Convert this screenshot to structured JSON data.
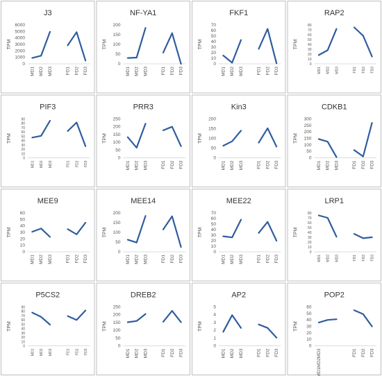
{
  "chart_data": [
    {
      "type": "line",
      "title": "J3",
      "ylabel": "TPM",
      "ylim": [
        0,
        6000
      ],
      "yticks": [
        0,
        1000,
        2000,
        3000,
        4000,
        5000,
        6000
      ],
      "categories": [
        "MD1",
        "MD2",
        "MD3",
        "",
        "FD1",
        "FD2",
        "FD3"
      ],
      "series": [
        {
          "values": [
            900,
            1250,
            4950,
            null,
            2850,
            4900,
            500
          ]
        }
      ],
      "color": "#2e5c9e"
    },
    {
      "type": "line",
      "title": "NF-YA1",
      "ylabel": "TPM",
      "ylim": [
        0,
        200
      ],
      "yticks": [
        0,
        50,
        100,
        150,
        200
      ],
      "categories": [
        "MD1",
        "MD2",
        "MD3",
        "",
        "FD1",
        "FD2",
        "FD3"
      ],
      "series": [
        {
          "values": [
            30,
            32,
            185,
            null,
            58,
            158,
            0
          ]
        }
      ],
      "color": "#2e5c9e"
    },
    {
      "type": "line",
      "title": "FKF1",
      "ylabel": "TPM",
      "ylim": [
        0,
        70
      ],
      "yticks": [
        0,
        10,
        20,
        30,
        40,
        50,
        60,
        70
      ],
      "categories": [
        "MD1",
        "MD2",
        "MD3",
        "",
        "FD1",
        "FD2",
        "FD3"
      ],
      "series": [
        {
          "values": [
            15,
            2,
            43,
            null,
            27,
            63,
            1
          ]
        }
      ],
      "color": "#2e5c9e"
    },
    {
      "type": "line",
      "title": "RAP2",
      "ylabel": "TPM",
      "ylim": [
        0,
        80
      ],
      "yticks": [
        0,
        10,
        20,
        30,
        40,
        50,
        60,
        70,
        80
      ],
      "categories": [
        "MD1",
        "MD2",
        "MD3",
        "",
        "FD1",
        "FD2",
        "FD3"
      ],
      "series": [
        {
          "values": [
            18,
            28,
            72,
            null,
            75,
            58,
            15
          ]
        }
      ],
      "color": "#2e5c9e"
    },
    {
      "type": "line",
      "title": "PIF3",
      "ylabel": "TPM",
      "ylim": [
        0,
        90
      ],
      "yticks": [
        0,
        10,
        20,
        30,
        40,
        50,
        60,
        70,
        80,
        90
      ],
      "categories": [
        "MD1",
        "MD2",
        "MD3",
        "",
        "FD1",
        "FD2",
        "FD3"
      ],
      "series": [
        {
          "values": [
            47,
            51,
            86,
            null,
            62,
            82,
            27
          ]
        }
      ],
      "color": "#2e5c9e"
    },
    {
      "type": "line",
      "title": "PRR3",
      "ylabel": "TPM",
      "ylim": [
        0,
        250
      ],
      "yticks": [
        0,
        50,
        100,
        150,
        200,
        250
      ],
      "categories": [
        "MD1",
        "MD2",
        "MD3",
        "",
        "FD1",
        "FD2",
        "FD3"
      ],
      "series": [
        {
          "values": [
            133,
            65,
            220,
            null,
            177,
            200,
            75
          ]
        }
      ],
      "color": "#2e5c9e"
    },
    {
      "type": "line",
      "title": "Kin3",
      "ylabel": "TPM",
      "ylim": [
        0,
        200
      ],
      "yticks": [
        0,
        50,
        100,
        150,
        200
      ],
      "categories": [
        "MD1",
        "MD2",
        "MD3",
        "",
        "FD1",
        "FD2",
        "FD3"
      ],
      "series": [
        {
          "values": [
            62,
            85,
            140,
            null,
            78,
            152,
            58
          ]
        }
      ],
      "color": "#2e5c9e"
    },
    {
      "type": "line",
      "title": "CDKB1",
      "ylabel": "TPM",
      "ylim": [
        0,
        300
      ],
      "yticks": [
        0,
        50,
        100,
        150,
        200,
        250,
        300
      ],
      "categories": [
        "MD1",
        "MD2",
        "MD3",
        "",
        "FD1",
        "FD2",
        "FD3"
      ],
      "series": [
        {
          "values": [
            145,
            125,
            5,
            null,
            60,
            10,
            270
          ]
        }
      ],
      "color": "#2e5c9e"
    },
    {
      "type": "line",
      "title": "MEE9",
      "ylabel": "TPM",
      "ylim": [
        0,
        60
      ],
      "yticks": [
        0,
        10,
        20,
        30,
        40,
        50,
        60
      ],
      "categories": [
        "MD1",
        "MD2",
        "MD3",
        "",
        "FD1",
        "FD2",
        "FD3"
      ],
      "series": [
        {
          "values": [
            31,
            36,
            23,
            null,
            35,
            27,
            45
          ]
        }
      ],
      "color": "#2e5c9e"
    },
    {
      "type": "line",
      "title": "MEE14",
      "ylabel": "TPM",
      "ylim": [
        0,
        200
      ],
      "yticks": [
        0,
        50,
        100,
        150,
        200
      ],
      "categories": [
        "MD1",
        "MD2",
        "MD3",
        "",
        "FD1",
        "FD2",
        "FD3"
      ],
      "series": [
        {
          "values": [
            62,
            48,
            185,
            null,
            115,
            183,
            25
          ]
        }
      ],
      "color": "#2e5c9e"
    },
    {
      "type": "line",
      "title": "MEE22",
      "ylabel": "TPM",
      "ylim": [
        0,
        70
      ],
      "yticks": [
        0,
        10,
        20,
        30,
        40,
        50,
        60,
        70
      ],
      "categories": [
        "MD1",
        "MD2",
        "MD3",
        "",
        "FD1",
        "FD2",
        "FD3"
      ],
      "series": [
        {
          "values": [
            28,
            26,
            58,
            null,
            34,
            54,
            20
          ]
        }
      ],
      "color": "#2e5c9e"
    },
    {
      "type": "line",
      "title": "LRP1",
      "ylabel": "TPM",
      "ylim": [
        0,
        80
      ],
      "yticks": [
        0,
        10,
        20,
        30,
        40,
        50,
        60,
        70,
        80
      ],
      "categories": [
        "MD1",
        "MD2",
        "MD3",
        "",
        "FD1",
        "FD2",
        "FD3"
      ],
      "series": [
        {
          "values": [
            75,
            70,
            31,
            null,
            37,
            28,
            30
          ]
        }
      ],
      "color": "#2e5c9e"
    },
    {
      "type": "line",
      "title": "P5CS2",
      "ylabel": "TPM",
      "ylim": [
        0,
        90
      ],
      "yticks": [
        0,
        10,
        20,
        30,
        40,
        50,
        60,
        70,
        80,
        90
      ],
      "categories": [
        "MD1",
        "MD2",
        "MD3",
        "",
        "FD1",
        "FD2",
        "FD3"
      ],
      "series": [
        {
          "values": [
            77,
            67,
            49,
            null,
            69,
            60,
            82
          ]
        }
      ],
      "color": "#2e5c9e"
    },
    {
      "type": "line",
      "title": "DREB2",
      "ylabel": "TPM",
      "ylim": [
        0,
        250
      ],
      "yticks": [
        0,
        50,
        100,
        150,
        200,
        250
      ],
      "categories": [
        "MD1",
        "MD2",
        "MD3",
        "",
        "FD1",
        "FD2",
        "FD3"
      ],
      "series": [
        {
          "values": [
            152,
            160,
            205,
            null,
            155,
            225,
            152
          ]
        }
      ],
      "color": "#2e5c9e"
    },
    {
      "type": "line",
      "title": "AP2",
      "ylabel": "TPM",
      "ylim": [
        0,
        5
      ],
      "yticks": [
        0,
        1,
        2,
        3,
        4,
        5
      ],
      "categories": [
        "MD1",
        "MD2",
        "MD3",
        "",
        "FD1",
        "FD2",
        "FD3"
      ],
      "series": [
        {
          "values": [
            1.8,
            3.95,
            2.3,
            null,
            2.75,
            2.3,
            1.05
          ]
        }
      ],
      "color": "#2e5c9e"
    },
    {
      "type": "line",
      "title": "POP2",
      "ylabel": "TPM",
      "ylim": [
        0,
        60
      ],
      "yticks": [
        0,
        10,
        20,
        30,
        40,
        50,
        60
      ],
      "categories": [
        "MD1MD2MD3",
        "",
        "",
        "",
        "FD1",
        "FD2",
        "FD3"
      ],
      "series": [
        {
          "values": [
            36,
            40,
            41,
            null,
            55,
            49,
            30
          ]
        }
      ],
      "color": "#2e5c9e"
    }
  ]
}
